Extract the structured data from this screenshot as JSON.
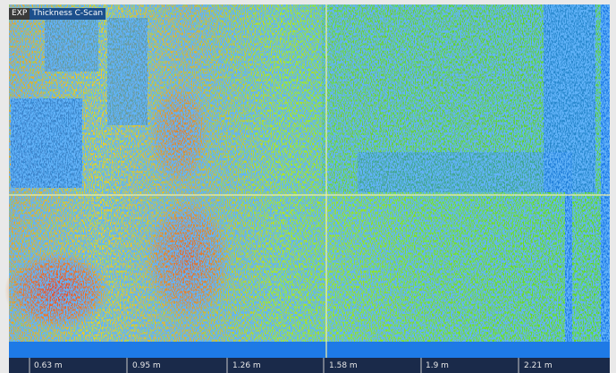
{
  "header": {
    "badge": "EXP",
    "title": "Thickness C-Scan"
  },
  "ruler": {
    "labels": [
      "0.63 m",
      "0.95 m",
      "1.26 m",
      "1.58 m",
      "1.9 m",
      "2.21 m"
    ]
  }
}
